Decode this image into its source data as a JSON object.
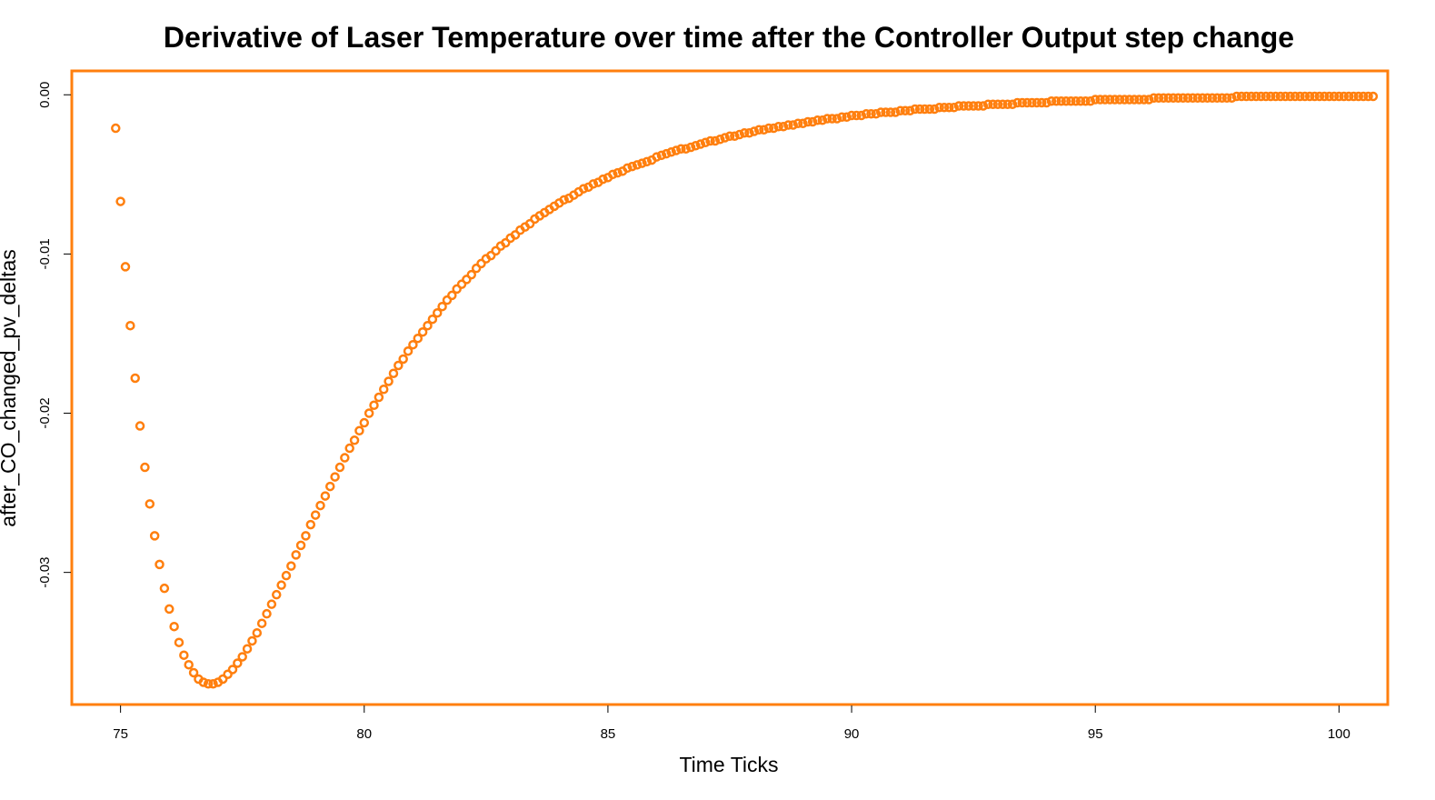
{
  "chart_data": {
    "type": "scatter",
    "title": "Derivative of Laser Temperature over time after the Controller Output step change",
    "xlabel": "Time Ticks",
    "ylabel": "after_CO_changed_pv_deltas",
    "xlim": [
      74,
      101
    ],
    "ylim": [
      -0.0383,
      0.0015
    ],
    "x_ticks": [
      75,
      80,
      85,
      90,
      95,
      100
    ],
    "x_tick_labels": [
      "75",
      "80",
      "85",
      "90",
      "95",
      "100"
    ],
    "y_ticks": [
      0,
      -0.01,
      -0.02,
      -0.03
    ],
    "y_tick_labels": [
      "0.00",
      "-0.01",
      "-0.02",
      "-0.03"
    ],
    "grid": false,
    "legend": "none",
    "colors": {
      "points": "#FF7F0E",
      "frame": "#FF7F0E",
      "text": "#000000"
    },
    "series": [
      {
        "x_start": 74.9,
        "x_step": 0.1,
        "values": [
          -0.0021,
          -0.0067,
          -0.0108,
          -0.0145,
          -0.0178,
          -0.0208,
          -0.0234,
          -0.0257,
          -0.0277,
          -0.0295,
          -0.031,
          -0.0323,
          -0.0334,
          -0.0344,
          -0.0352,
          -0.0358,
          -0.0363,
          -0.0367,
          -0.0369,
          -0.037,
          -0.037,
          -0.0369,
          -0.0367,
          -0.0364,
          -0.0361,
          -0.0357,
          -0.0353,
          -0.0348,
          -0.0343,
          -0.0338,
          -0.0332,
          -0.0326,
          -0.032,
          -0.0314,
          -0.0308,
          -0.0302,
          -0.0296,
          -0.0289,
          -0.0283,
          -0.0277,
          -0.027,
          -0.0264,
          -0.0258,
          -0.0252,
          -0.0246,
          -0.024,
          -0.0234,
          -0.0228,
          -0.0222,
          -0.0217,
          -0.0211,
          -0.0206,
          -0.02,
          -0.0195,
          -0.019,
          -0.0185,
          -0.018,
          -0.0175,
          -0.017,
          -0.0166,
          -0.0161,
          -0.0157,
          -0.0153,
          -0.0149,
          -0.0145,
          -0.0141,
          -0.0137,
          -0.0133,
          -0.0129,
          -0.0126,
          -0.0122,
          -0.0119,
          -0.0116,
          -0.0113,
          -0.0109,
          -0.0106,
          -0.0103,
          -0.0101,
          -0.0098,
          -0.0095,
          -0.0093,
          -0.009,
          -0.0088,
          -0.0085,
          -0.0083,
          -0.0081,
          -0.0078,
          -0.0076,
          -0.0074,
          -0.0072,
          -0.007,
          -0.0068,
          -0.0066,
          -0.0065,
          -0.0063,
          -0.0061,
          -0.0059,
          -0.0058,
          -0.0056,
          -0.0055,
          -0.0053,
          -0.0052,
          -0.005,
          -0.0049,
          -0.0048,
          -0.0046,
          -0.0045,
          -0.0044,
          -0.0043,
          -0.0042,
          -0.0041,
          -0.0039,
          -0.0038,
          -0.0037,
          -0.0036,
          -0.0035,
          -0.0034,
          -0.0034,
          -0.0033,
          -0.0032,
          -0.0031,
          -0.003,
          -0.0029,
          -0.0029,
          -0.0028,
          -0.0027,
          -0.0026,
          -0.0026,
          -0.0025,
          -0.0024,
          -0.0024,
          -0.0023,
          -0.0022,
          -0.0022,
          -0.0021,
          -0.0021,
          -0.002,
          -0.002,
          -0.0019,
          -0.0019,
          -0.0018,
          -0.0018,
          -0.0017,
          -0.0017,
          -0.0016,
          -0.0016,
          -0.0015,
          -0.0015,
          -0.0015,
          -0.0014,
          -0.0014,
          -0.0013,
          -0.0013,
          -0.0013,
          -0.0012,
          -0.0012,
          -0.0012,
          -0.0011,
          -0.0011,
          -0.0011,
          -0.0011,
          -0.001,
          -0.001,
          -0.001,
          -0.0009,
          -0.0009,
          -0.0009,
          -0.0009,
          -0.0009,
          -0.0008,
          -0.0008,
          -0.0008,
          -0.0008,
          -0.0007,
          -0.0007,
          -0.0007,
          -0.0007,
          -0.0007,
          -0.0007,
          -0.0006,
          -0.0006,
          -0.0006,
          -0.0006,
          -0.0006,
          -0.0006,
          -0.0005,
          -0.0005,
          -0.0005,
          -0.0005,
          -0.0005,
          -0.0005,
          -0.0005,
          -0.0004,
          -0.0004,
          -0.0004,
          -0.0004,
          -0.0004,
          -0.0004,
          -0.0004,
          -0.0004,
          -0.0004,
          -0.0003,
          -0.0003,
          -0.0003,
          -0.0003,
          -0.0003,
          -0.0003,
          -0.0003,
          -0.0003,
          -0.0003,
          -0.0003,
          -0.0003,
          -0.0003,
          -0.0002,
          -0.0002,
          -0.0002,
          -0.0002,
          -0.0002,
          -0.0002,
          -0.0002,
          -0.0002,
          -0.0002,
          -0.0002,
          -0.0002,
          -0.0002,
          -0.0002,
          -0.0002,
          -0.0002,
          -0.0002,
          -0.0002,
          -0.0001,
          -0.0001,
          -0.0001,
          -0.0001,
          -0.0001,
          -0.0001,
          -0.0001,
          -0.0001,
          -0.0001,
          -0.0001,
          -0.0001,
          -0.0001,
          -0.0001,
          -0.0001,
          -0.0001,
          -0.0001,
          -0.0001,
          -0.0001,
          -0.0001,
          -0.0001,
          -0.0001,
          -0.0001,
          -0.0001,
          -0.0001,
          -0.0001,
          -0.0001,
          -0.0001,
          -0.0001,
          -0.0001
        ]
      }
    ]
  }
}
